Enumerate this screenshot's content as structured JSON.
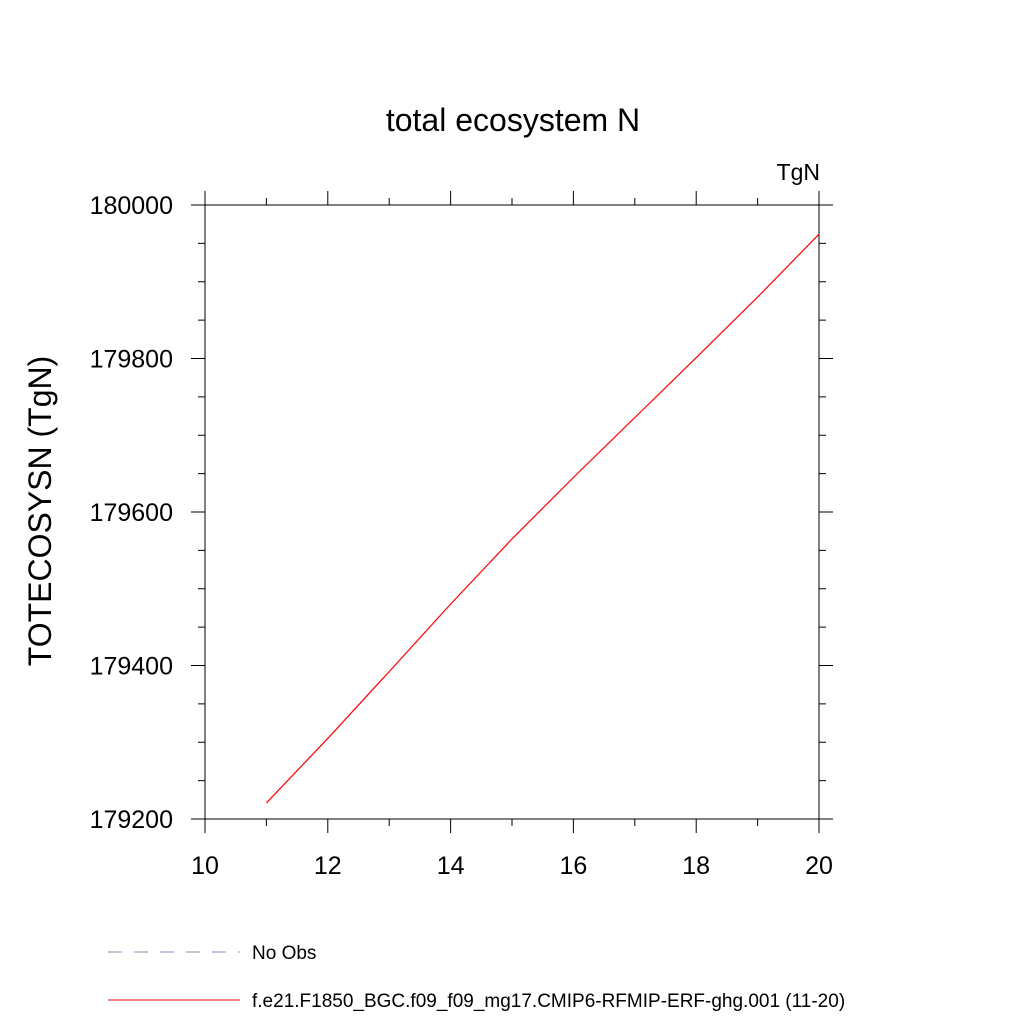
{
  "chart_data": {
    "type": "line",
    "title": "total ecosystem N",
    "unit_label": "TgN",
    "xlabel": "",
    "ylabel": "TOTECOSYSN  (TgN)",
    "xlim": [
      10,
      20
    ],
    "ylim": [
      179200,
      180000
    ],
    "x_ticks": [
      10,
      12,
      14,
      16,
      18,
      20
    ],
    "y_ticks": [
      179200,
      179400,
      179600,
      179800,
      180000
    ],
    "x_minor_step": 1,
    "y_minor_step": 50,
    "grid": false,
    "legend_position": "bottom",
    "series": [
      {
        "name": "No Obs",
        "color": "#8a86b4",
        "dash": "dashed",
        "x": [],
        "y": []
      },
      {
        "name": "f.e21.F1850_BGC.f09_f09_mg17.CMIP6-RFMIP-ERF-ghg.001 (11-20)",
        "color": "#ff0000",
        "dash": "solid",
        "x": [
          11,
          12,
          13,
          14,
          15,
          16,
          17,
          18,
          19,
          20
        ],
        "y": [
          179221,
          179305,
          179392,
          179480,
          179565,
          179645,
          179723,
          179801,
          179880,
          179962
        ]
      }
    ]
  }
}
